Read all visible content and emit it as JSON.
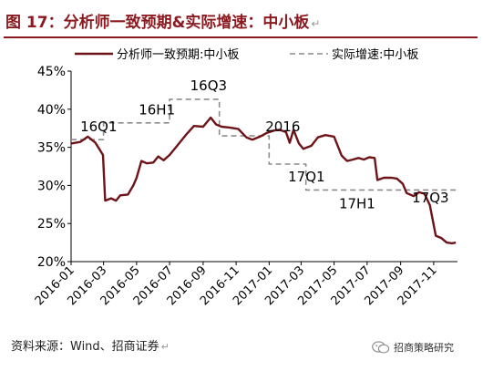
{
  "figure": {
    "title": "图 17：分析师一致预期&实际增速：中小板",
    "source": "资料来源：Wind、招商证券",
    "watermark": "招商策略研究"
  },
  "chart_data": {
    "type": "line",
    "xlabel": "",
    "ylabel": "",
    "ylim": [
      20,
      45
    ],
    "yticks": [
      "20%",
      "25%",
      "30%",
      "35%",
      "40%",
      "45%"
    ],
    "y_tick_values": [
      20,
      25,
      30,
      35,
      40,
      45
    ],
    "x_range": [
      "2016-01-01",
      "2017-12-15"
    ],
    "xticks": [
      "2016-01",
      "2016-03",
      "2016-05",
      "2016-07",
      "2016-09",
      "2016-11",
      "2017-01",
      "2017-03",
      "2017-05",
      "2017-07",
      "2017-09",
      "2017-11"
    ],
    "legend_position": "top",
    "grid": false,
    "series": [
      {
        "name": "分析师一致预期:中小板",
        "style": "solid",
        "color": "#6e1418",
        "points": [
          [
            "2016-01-01",
            35.5
          ],
          [
            "2016-01-18",
            35.7
          ],
          [
            "2016-02-01",
            36.4
          ],
          [
            "2016-02-15",
            35.6
          ],
          [
            "2016-02-29",
            34.0
          ],
          [
            "2016-03-04",
            28.0
          ],
          [
            "2016-03-15",
            28.3
          ],
          [
            "2016-03-24",
            28.0
          ],
          [
            "2016-04-01",
            28.7
          ],
          [
            "2016-04-15",
            28.8
          ],
          [
            "2016-04-25",
            30.0
          ],
          [
            "2016-05-01",
            31.0
          ],
          [
            "2016-05-10",
            33.2
          ],
          [
            "2016-05-20",
            32.9
          ],
          [
            "2016-06-01",
            33.0
          ],
          [
            "2016-06-10",
            33.8
          ],
          [
            "2016-06-20",
            33.3
          ],
          [
            "2016-07-01",
            34.0
          ],
          [
            "2016-07-15",
            35.2
          ],
          [
            "2016-08-01",
            36.7
          ],
          [
            "2016-08-15",
            37.8
          ],
          [
            "2016-09-01",
            37.7
          ],
          [
            "2016-09-15",
            38.9
          ],
          [
            "2016-09-25",
            38.0
          ],
          [
            "2016-10-05",
            37.7
          ],
          [
            "2016-10-20",
            37.6
          ],
          [
            "2016-11-05",
            37.4
          ],
          [
            "2016-11-20",
            36.3
          ],
          [
            "2016-12-01",
            36.0
          ],
          [
            "2016-12-15",
            36.4
          ],
          [
            "2016-12-28",
            36.9
          ],
          [
            "2017-01-10",
            37.2
          ],
          [
            "2017-01-20",
            37.3
          ],
          [
            "2017-02-01",
            37.0
          ],
          [
            "2017-02-08",
            35.6
          ],
          [
            "2017-02-15",
            37.3
          ],
          [
            "2017-02-25",
            35.5
          ],
          [
            "2017-03-05",
            34.8
          ],
          [
            "2017-03-20",
            35.2
          ],
          [
            "2017-04-01",
            36.3
          ],
          [
            "2017-04-15",
            36.6
          ],
          [
            "2017-05-01",
            36.4
          ],
          [
            "2017-05-15",
            33.9
          ],
          [
            "2017-05-25",
            33.2
          ],
          [
            "2017-06-05",
            33.4
          ],
          [
            "2017-06-15",
            33.6
          ],
          [
            "2017-06-25",
            33.4
          ],
          [
            "2017-07-05",
            33.7
          ],
          [
            "2017-07-15",
            33.6
          ],
          [
            "2017-07-20",
            30.7
          ],
          [
            "2017-08-01",
            31.0
          ],
          [
            "2017-08-15",
            31.0
          ],
          [
            "2017-08-25",
            30.9
          ],
          [
            "2017-09-05",
            30.2
          ],
          [
            "2017-09-12",
            29.0
          ],
          [
            "2017-09-25",
            28.6
          ],
          [
            "2017-10-05",
            29.1
          ],
          [
            "2017-10-15",
            28.9
          ],
          [
            "2017-10-25",
            27.4
          ],
          [
            "2017-11-05",
            23.4
          ],
          [
            "2017-11-15",
            23.1
          ],
          [
            "2017-11-25",
            22.5
          ],
          [
            "2017-12-05",
            22.4
          ],
          [
            "2017-12-12",
            22.5
          ]
        ]
      },
      {
        "name": "实际增速:中小板",
        "style": "dashed",
        "color": "#8c8c8c",
        "points": [
          [
            "2016-01-01",
            36.0
          ],
          [
            "2016-03-01",
            36.0
          ],
          [
            "2016-03-01",
            38.2
          ],
          [
            "2016-07-01",
            38.2
          ],
          [
            "2016-07-01",
            41.3
          ],
          [
            "2016-10-01",
            41.3
          ],
          [
            "2016-10-01",
            36.5
          ],
          [
            "2017-01-01",
            36.5
          ],
          [
            "2017-01-01",
            32.8
          ],
          [
            "2017-03-10",
            32.8
          ],
          [
            "2017-03-10",
            29.4
          ],
          [
            "2017-12-15",
            29.4
          ]
        ]
      }
    ],
    "annotations": [
      "16Q1",
      "16H1",
      "16Q3",
      "2016",
      "17Q1",
      "17H1",
      "17Q3"
    ]
  }
}
